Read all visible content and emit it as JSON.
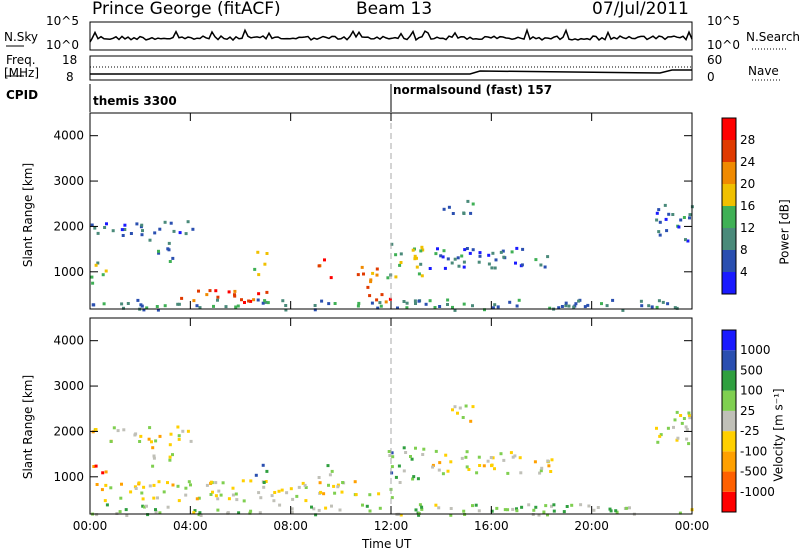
{
  "header": {
    "station": "Prince George (fitACF)",
    "beam": "Beam 13",
    "date": "07/Jul/2011"
  },
  "top_panels": {
    "nsky_label": "N.Sky",
    "nsky_ticks": [
      "10^5",
      "10^0"
    ],
    "nsearch_label": "N.Search",
    "nsearch_ticks": [
      "10^5",
      "10^0"
    ],
    "freq_label": "Freq.",
    "freq_unit": "[MHz]",
    "freq_ticks": [
      "18",
      "8"
    ],
    "nave_label": "Nave",
    "nave_ticks": [
      "60",
      "0"
    ],
    "cpid_label": "CPID",
    "cpid_segments": [
      {
        "label": "themis 3300",
        "start_hour": 0
      },
      {
        "label": "normalsound (fast) 157",
        "start_hour": 12
      }
    ]
  },
  "chart_data": [
    {
      "type": "heatmap",
      "title": "",
      "xlabel": "",
      "ylabel": "Slant Range [km]",
      "x_range_hours": [
        0,
        24
      ],
      "xticks": [
        "00:00",
        "04:00",
        "08:00",
        "12:00",
        "16:00",
        "20:00",
        "00:00"
      ],
      "ylim": [
        180,
        4500
      ],
      "yticks": [
        1000,
        2000,
        3000,
        4000
      ],
      "colorbar": {
        "label": "Power [dB]",
        "ticks": [
          4,
          8,
          12,
          16,
          20,
          24,
          28
        ],
        "colors": [
          "#1a1aff",
          "#2a4fb0",
          "#4a8a7a",
          "#3fb055",
          "#f0c000",
          "#f08a00",
          "#e03a00",
          "#ff0000"
        ]
      },
      "regions": [
        {
          "t0": 0.0,
          "t1": 4.2,
          "r0": 1800,
          "r1": 2150,
          "level": 0.2
        },
        {
          "t0": 2.3,
          "t1": 3.3,
          "r0": 1250,
          "r1": 1750,
          "level": 0.35
        },
        {
          "t0": 0.0,
          "t1": 0.6,
          "r0": 700,
          "r1": 1300,
          "level": 0.45
        },
        {
          "t0": 3.5,
          "t1": 7.0,
          "r0": 350,
          "r1": 650,
          "level": 0.85
        },
        {
          "t0": 6.5,
          "t1": 7.0,
          "r0": 900,
          "r1": 1500,
          "level": 0.5
        },
        {
          "t0": 9.0,
          "t1": 9.6,
          "r0": 900,
          "r1": 1300,
          "level": 0.75
        },
        {
          "t0": 10.5,
          "t1": 11.5,
          "r0": 600,
          "r1": 1150,
          "level": 0.7
        },
        {
          "t0": 11.0,
          "t1": 12.0,
          "r0": 350,
          "r1": 650,
          "level": 0.8
        },
        {
          "t0": 11.8,
          "t1": 13.3,
          "r0": 900,
          "r1": 1700,
          "level": 0.45
        },
        {
          "t0": 13.5,
          "t1": 18.5,
          "r0": 1100,
          "r1": 1600,
          "level": 0.25
        },
        {
          "t0": 14.0,
          "t1": 15.3,
          "r0": 2250,
          "r1": 2600,
          "level": 0.25
        },
        {
          "t0": 22.5,
          "t1": 24.0,
          "r0": 1700,
          "r1": 2500,
          "level": 0.25
        },
        {
          "t0": 0.0,
          "t1": 24.0,
          "r0": 180,
          "r1": 420,
          "level": 0.3
        }
      ]
    },
    {
      "type": "heatmap",
      "title": "",
      "xlabel": "Time UT",
      "ylabel": "Slant Range [km]",
      "x_range_hours": [
        0,
        24
      ],
      "xticks": [
        "00:00",
        "04:00",
        "08:00",
        "12:00",
        "16:00",
        "20:00",
        "00:00"
      ],
      "ylim": [
        180,
        4500
      ],
      "yticks": [
        1000,
        2000,
        3000,
        4000
      ],
      "colorbar": {
        "label": "Velocity [m s⁻¹]",
        "ticks": [
          "1000",
          "500",
          "100",
          "25",
          "-25",
          "-100",
          "-500",
          "-1000"
        ],
        "colors": [
          "#ff0000",
          "#ff6000",
          "#ffa000",
          "#ffd000",
          "#c0c0b8",
          "#7fcf50",
          "#2f9f3f",
          "#2a4fb0",
          "#1a1aff"
        ]
      },
      "regions": [
        {
          "t0": 0.0,
          "t1": 4.2,
          "r0": 1800,
          "r1": 2150,
          "level": 0.47
        },
        {
          "t0": 2.3,
          "t1": 3.3,
          "r0": 1250,
          "r1": 1750,
          "level": 0.47
        },
        {
          "t0": 0.0,
          "t1": 0.6,
          "r0": 700,
          "r1": 1300,
          "level": 0.15
        },
        {
          "t0": 0.5,
          "t1": 12.0,
          "r0": 500,
          "r1": 950,
          "level": 0.48
        },
        {
          "t0": 6.5,
          "t1": 7.0,
          "r0": 900,
          "r1": 1500,
          "level": 0.65
        },
        {
          "t0": 9.0,
          "t1": 9.6,
          "r0": 900,
          "r1": 1300,
          "level": 0.62
        },
        {
          "t0": 11.8,
          "t1": 13.3,
          "r0": 900,
          "r1": 1700,
          "level": 0.65
        },
        {
          "t0": 13.5,
          "t1": 18.5,
          "r0": 1100,
          "r1": 1600,
          "level": 0.48
        },
        {
          "t0": 14.0,
          "t1": 15.3,
          "r0": 2250,
          "r1": 2600,
          "level": 0.47
        },
        {
          "t0": 22.5,
          "t1": 24.0,
          "r0": 1700,
          "r1": 2500,
          "level": 0.47
        },
        {
          "t0": 0.0,
          "t1": 24.0,
          "r0": 180,
          "r1": 420,
          "level": 0.6
        }
      ]
    }
  ]
}
